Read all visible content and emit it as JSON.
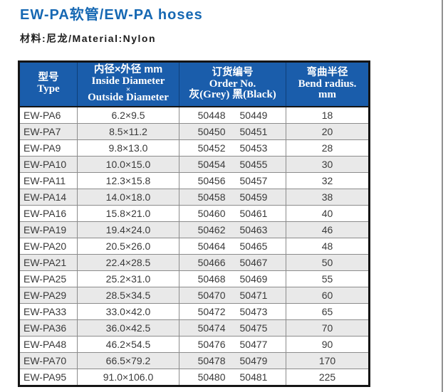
{
  "page": {
    "title": "EW-PA软管/EW-PA hoses",
    "subtitle": "材料:尼龙/Material:Nylon"
  },
  "colors": {
    "title_blue": "#1668b3",
    "header_blue": "#1a5dab",
    "alt_row_grey": "#e9e9e9",
    "body_text_grey": "#3a3a3a",
    "outer_border_black": "#151515"
  },
  "table": {
    "headers": {
      "type": {
        "zh": "型号",
        "en": "Type"
      },
      "diameter": {
        "zh": "内径×外径 mm",
        "en1": "Inside Diameter",
        "times": "×",
        "en2": "Outside Diameter"
      },
      "order": {
        "zh": "订货编号",
        "en": "Order No.",
        "sub": "灰(Grey) 黑(Black)"
      },
      "bend": {
        "zh": "弯曲半径",
        "en": "Bend radius.",
        "unit": "mm"
      }
    },
    "rows": [
      {
        "type": "EW-PA6",
        "size": "6.2×9.5",
        "order_grey": "50448",
        "order_black": "50449",
        "bend": "18"
      },
      {
        "type": "EW-PA7",
        "size": "8.5×11.2",
        "order_grey": "50450",
        "order_black": "50451",
        "bend": "20"
      },
      {
        "type": "EW-PA9",
        "size": "9.8×13.0",
        "order_grey": "50452",
        "order_black": "50453",
        "bend": "28"
      },
      {
        "type": "EW-PA10",
        "size": "10.0×15.0",
        "order_grey": "50454",
        "order_black": "50455",
        "bend": "30"
      },
      {
        "type": "EW-PA11",
        "size": "12.3×15.8",
        "order_grey": "50456",
        "order_black": "50457",
        "bend": "32"
      },
      {
        "type": "EW-PA14",
        "size": "14.0×18.0",
        "order_grey": "50458",
        "order_black": "50459",
        "bend": "38"
      },
      {
        "type": "EW-PA16",
        "size": "15.8×21.0",
        "order_grey": "50460",
        "order_black": "50461",
        "bend": "40"
      },
      {
        "type": "EW-PA19",
        "size": "19.4×24.0",
        "order_grey": "50462",
        "order_black": "50463",
        "bend": "46"
      },
      {
        "type": "EW-PA20",
        "size": "20.5×26.0",
        "order_grey": "50464",
        "order_black": "50465",
        "bend": "48"
      },
      {
        "type": "EW-PA21",
        "size": "22.4×28.5",
        "order_grey": "50466",
        "order_black": "50467",
        "bend": "50"
      },
      {
        "type": "EW-PA25",
        "size": "25.2×31.0",
        "order_grey": "50468",
        "order_black": "50469",
        "bend": "55"
      },
      {
        "type": "EW-PA29",
        "size": "28.5×34.5",
        "order_grey": "50470",
        "order_black": "50471",
        "bend": "60"
      },
      {
        "type": "EW-PA33",
        "size": "33.0×42.0",
        "order_grey": "50472",
        "order_black": "50473",
        "bend": "65"
      },
      {
        "type": "EW-PA36",
        "size": "36.0×42.5",
        "order_grey": "50474",
        "order_black": "50475",
        "bend": "70"
      },
      {
        "type": "EW-PA48",
        "size": "46.2×54.5",
        "order_grey": "50476",
        "order_black": "50477",
        "bend": "90"
      },
      {
        "type": "EW-PA70",
        "size": "66.5×79.2",
        "order_grey": "50478",
        "order_black": "50479",
        "bend": "170"
      },
      {
        "type": "EW-PA95",
        "size": "91.0×106.0",
        "order_grey": "50480",
        "order_black": "50481",
        "bend": "225"
      }
    ]
  }
}
